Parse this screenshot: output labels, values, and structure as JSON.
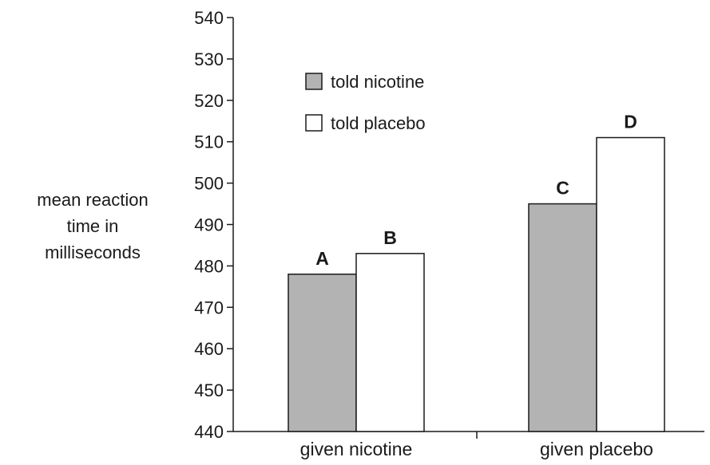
{
  "chart_data": {
    "type": "bar",
    "categories": [
      "given nicotine",
      "given placebo"
    ],
    "series": [
      {
        "name": "told nicotine",
        "values": [
          478,
          495
        ],
        "labels": [
          "A",
          "C"
        ],
        "color": "#b3b3b3"
      },
      {
        "name": "told placebo",
        "values": [
          483,
          511
        ],
        "labels": [
          "B",
          "D"
        ],
        "color": "#ffffff"
      }
    ],
    "ylabel_lines": [
      "mean reaction",
      "time in",
      "milliseconds"
    ],
    "ylim": [
      440,
      540
    ],
    "yticks": [
      440,
      450,
      460,
      470,
      480,
      490,
      500,
      510,
      520,
      530,
      540
    ],
    "grid": false,
    "legend_position": "top-left"
  }
}
